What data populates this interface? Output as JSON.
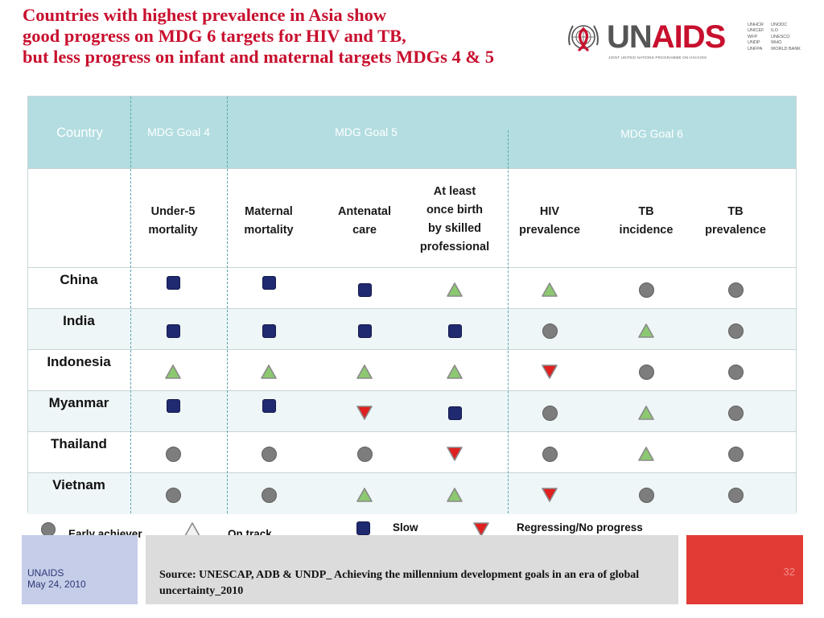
{
  "title": {
    "line1": "Countries with highest prevalence in Asia show",
    "line2": "good progress on MDG 6 targets for HIV and TB,",
    "line3": "but less progress on infant and maternal targets MDGs 4 & 5"
  },
  "logo": {
    "word_un": "UN",
    "word_aids": "AIDS",
    "tagline": "JOINT UNITED NATIONS PROGRAMME ON HIV/AIDS",
    "partners_col1": [
      "UNHCR",
      "UNICEF",
      "WFP",
      "UNDP",
      "UNFPA"
    ],
    "partners_col2": [
      "UNODC",
      "ILO",
      "UNESCO",
      "WHO",
      "WORLD BANK"
    ]
  },
  "table": {
    "header": {
      "country": "Country",
      "goal4": "MDG Goal 4",
      "goal5": "MDG Goal 5",
      "goal6": "MDG Goal 6"
    },
    "indicators": [
      [
        "Under-5",
        "mortality"
      ],
      [
        "Maternal",
        "mortality"
      ],
      [
        "Antenatal",
        "care"
      ],
      [
        "At least",
        "once birth",
        "by skilled",
        "professional"
      ],
      [
        "HIV",
        "prevalence"
      ],
      [
        "TB",
        "incidence"
      ],
      [
        "TB",
        "prevalence"
      ]
    ],
    "rows": [
      {
        "country": "China",
        "status": [
          "slow",
          "slow",
          "slow",
          "on-track",
          "on-track",
          "early",
          "early"
        ]
      },
      {
        "country": "India",
        "status": [
          "slow",
          "slow",
          "slow",
          "slow",
          "early",
          "on-track",
          "early"
        ]
      },
      {
        "country": "Indonesia",
        "status": [
          "on-track",
          "on-track",
          "on-track",
          "on-track",
          "regressing",
          "early",
          "early"
        ]
      },
      {
        "country": "Myanmar",
        "status": [
          "slow",
          "slow",
          "regressing",
          "slow",
          "early",
          "on-track",
          "early"
        ]
      },
      {
        "country": "Thailand",
        "status": [
          "early",
          "early",
          "early",
          "regressing",
          "early",
          "on-track",
          "early"
        ]
      },
      {
        "country": "Vietnam",
        "status": [
          "early",
          "early",
          "on-track",
          "on-track",
          "regressing",
          "early",
          "early"
        ]
      }
    ]
  },
  "legend": {
    "early": "Early achiever",
    "on_track": "On track",
    "slow": "Slow",
    "regressing": "Regressing/No progress"
  },
  "colors": {
    "title": "#c8102e",
    "header_band": "#b3dde0",
    "slow": "#1f2a70",
    "on_track": "#8cc870",
    "early": "#7d7d7d",
    "regressing": "#e0201f"
  },
  "footer": {
    "org": "UNAIDS",
    "date": "May 24, 2010",
    "source": "Source: UNESCAP, ADB & UNDP_ Achieving the millennium development goals in an era of global uncertainty_2010",
    "page": "32"
  }
}
